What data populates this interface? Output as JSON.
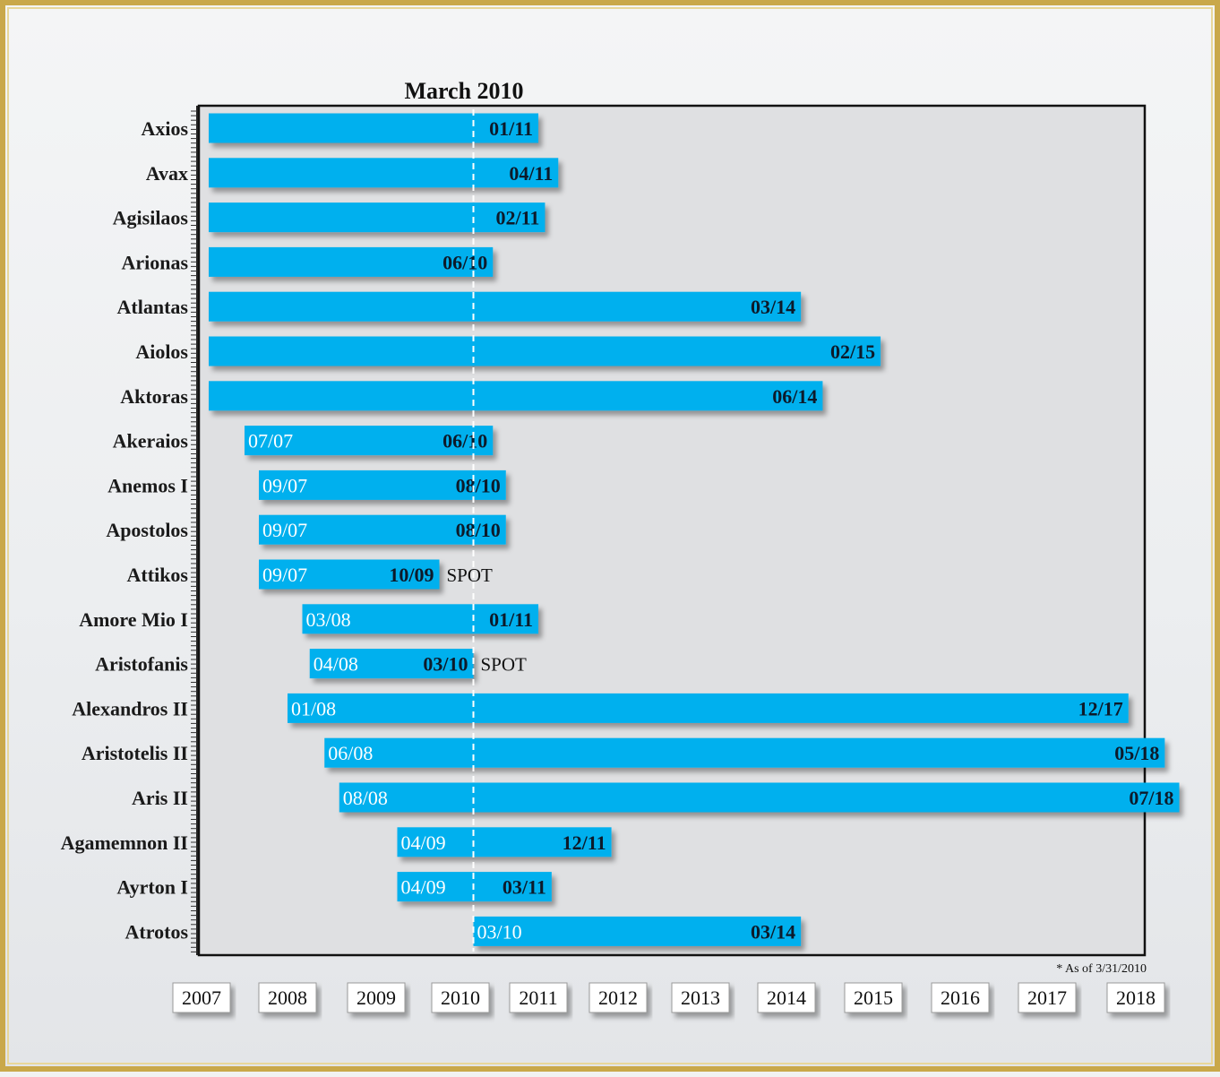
{
  "colors": {
    "bar": "#00b0ee",
    "plot_bg": "#dfe0e2",
    "frame": "#c9a84a",
    "marker_line": "#ffffff"
  },
  "chart_data": {
    "type": "bar",
    "orientation": "horizontal-timeline",
    "title": "March 2010",
    "footnote": "* As of 3/31/2010",
    "marker": {
      "label": "March 2010",
      "date": "03/10"
    },
    "x_axis": {
      "ticks": [
        "2007",
        "2008",
        "2009",
        "2010",
        "2011",
        "2012",
        "2013",
        "2014",
        "2015",
        "2016",
        "2017",
        "2018"
      ]
    },
    "vessels": [
      {
        "name": "Axios",
        "start": null,
        "end": "01/11"
      },
      {
        "name": "Avax",
        "start": null,
        "end": "04/11"
      },
      {
        "name": "Agisilaos",
        "start": null,
        "end": "02/11"
      },
      {
        "name": "Arionas",
        "start": null,
        "end": "06/10"
      },
      {
        "name": "Atlantas",
        "start": null,
        "end": "03/14"
      },
      {
        "name": "Aiolos",
        "start": null,
        "end": "02/15"
      },
      {
        "name": "Aktoras",
        "start": null,
        "end": "06/14"
      },
      {
        "name": "Akeraios",
        "start": "07/07",
        "end": "06/10"
      },
      {
        "name": "Anemos I",
        "start": "09/07",
        "end": "08/10"
      },
      {
        "name": "Apostolos",
        "start": "09/07",
        "end": "08/10"
      },
      {
        "name": "Attikos",
        "start": "09/07",
        "end": "10/09",
        "note": "SPOT"
      },
      {
        "name": "Amore Mio I",
        "start": "03/08",
        "end": "01/11"
      },
      {
        "name": "Aristofanis",
        "start": "04/08",
        "end": "03/10",
        "note": "SPOT"
      },
      {
        "name": "Alexandros II",
        "start": "01/08",
        "end": "12/17"
      },
      {
        "name": "Aristotelis II",
        "start": "06/08",
        "end": "05/18"
      },
      {
        "name": "Aris II",
        "start": "08/08",
        "end": "07/18"
      },
      {
        "name": "Agamemnon II",
        "start": "04/09",
        "end": "12/11"
      },
      {
        "name": "Ayrton I",
        "start": "04/09",
        "end": "03/11"
      },
      {
        "name": "Atrotos",
        "start": "03/10",
        "end": "03/14"
      }
    ]
  }
}
